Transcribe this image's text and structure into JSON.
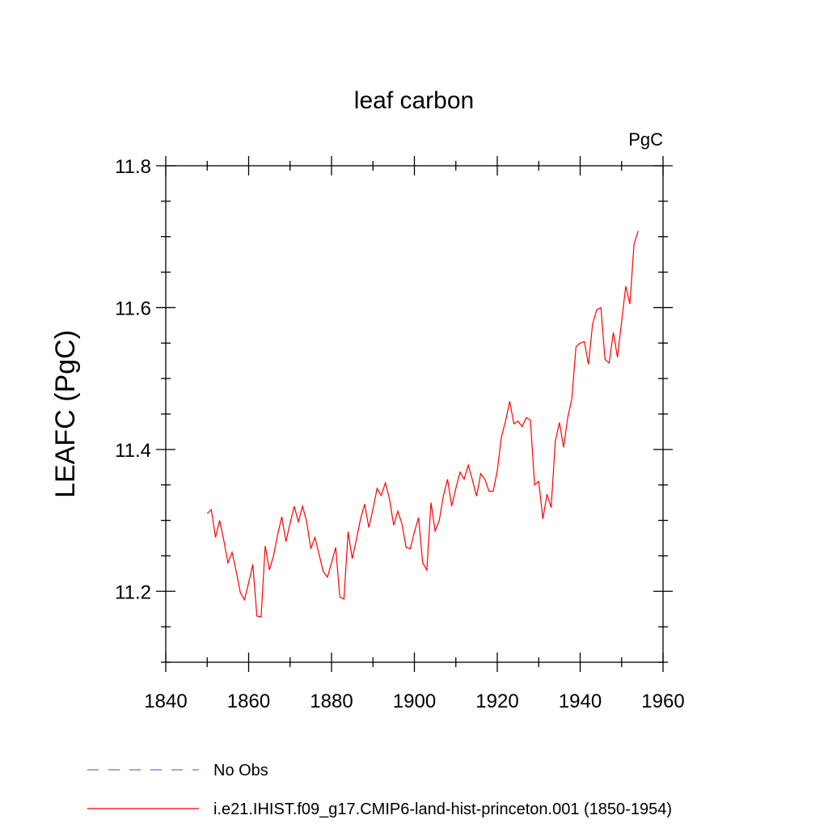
{
  "chart_data": {
    "type": "line",
    "title": "leaf carbon",
    "units": "PgC",
    "xlabel": "",
    "ylabel": "LEAFC  (PgC)",
    "xlim": [
      1840,
      1960
    ],
    "ylim": [
      11.1,
      11.8
    ],
    "x_ticks": [
      1840,
      1860,
      1880,
      1900,
      1920,
      1940,
      1960
    ],
    "x_minor_ticks": [
      1850,
      1870,
      1890,
      1910,
      1930,
      1950
    ],
    "y_ticks": [
      11.2,
      11.4,
      11.6,
      11.8
    ],
    "y_tick_labels": [
      "11.2",
      "11.4",
      "11.6",
      "11.8"
    ],
    "y_minor_ticks": [
      11.1,
      11.15,
      11.25,
      11.3,
      11.35,
      11.45,
      11.5,
      11.55,
      11.65,
      11.7,
      11.75
    ],
    "grid": false,
    "legend_position": "bottom",
    "series": [
      {
        "name": "No Obs",
        "color": "#7b68c8",
        "dash": true,
        "x": [],
        "y": []
      },
      {
        "name": "i.e21.IHIST.f09_g17.CMIP6-land-hist-princeton.001 (1850-1954)",
        "color": "#ff0000",
        "dash": false,
        "x": [
          1850,
          1851,
          1852,
          1853,
          1854,
          1855,
          1856,
          1857,
          1858,
          1859,
          1860,
          1861,
          1862,
          1863,
          1864,
          1865,
          1866,
          1867,
          1868,
          1869,
          1870,
          1871,
          1872,
          1873,
          1874,
          1875,
          1876,
          1877,
          1878,
          1879,
          1880,
          1881,
          1882,
          1883,
          1884,
          1885,
          1886,
          1887,
          1888,
          1889,
          1890,
          1891,
          1892,
          1893,
          1894,
          1895,
          1896,
          1897,
          1898,
          1899,
          1900,
          1901,
          1902,
          1903,
          1904,
          1905,
          1906,
          1907,
          1908,
          1909,
          1910,
          1911,
          1912,
          1913,
          1914,
          1915,
          1916,
          1917,
          1918,
          1919,
          1920,
          1921,
          1922,
          1923,
          1924,
          1925,
          1926,
          1927,
          1928,
          1929,
          1930,
          1931,
          1932,
          1933,
          1934,
          1935,
          1936,
          1937,
          1938,
          1939,
          1940,
          1941,
          1942,
          1943,
          1944,
          1945,
          1946,
          1947,
          1948,
          1949,
          1950,
          1951,
          1952,
          1953,
          1954
        ],
        "y": [
          11.31,
          11.315,
          11.276,
          11.3,
          11.272,
          11.24,
          11.255,
          11.228,
          11.198,
          11.188,
          11.212,
          11.238,
          11.165,
          11.164,
          11.264,
          11.23,
          11.25,
          11.28,
          11.305,
          11.27,
          11.296,
          11.32,
          11.298,
          11.32,
          11.298,
          11.26,
          11.276,
          11.252,
          11.228,
          11.22,
          11.24,
          11.262,
          11.192,
          11.189,
          11.284,
          11.246,
          11.273,
          11.302,
          11.323,
          11.29,
          11.316,
          11.345,
          11.335,
          11.353,
          11.33,
          11.293,
          11.313,
          11.295,
          11.262,
          11.26,
          11.284,
          11.304,
          11.24,
          11.23,
          11.325,
          11.285,
          11.3,
          11.335,
          11.358,
          11.32,
          11.345,
          11.368,
          11.358,
          11.378,
          11.357,
          11.334,
          11.366,
          11.358,
          11.341,
          11.341,
          11.37,
          11.418,
          11.44,
          11.468,
          11.436,
          11.44,
          11.432,
          11.445,
          11.441,
          11.35,
          11.355,
          11.302,
          11.337,
          11.318,
          11.412,
          11.438,
          11.403,
          11.445,
          11.472,
          11.545,
          11.55,
          11.552,
          11.52,
          11.577,
          11.597,
          11.6,
          11.527,
          11.522,
          11.565,
          11.53,
          11.58,
          11.63,
          11.605,
          11.69,
          11.708
        ]
      }
    ]
  }
}
